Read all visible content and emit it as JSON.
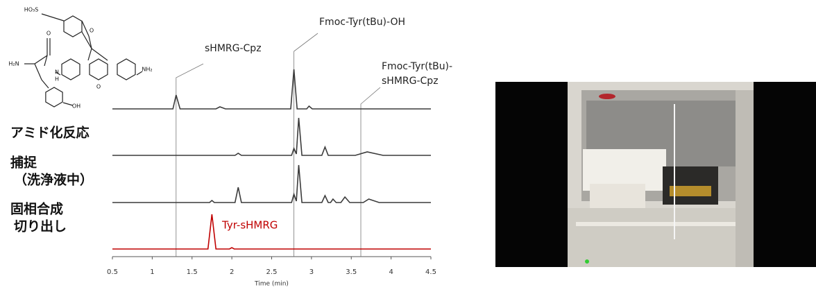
{
  "chart_data": {
    "type": "line",
    "xlabel": "Time (min)",
    "xlim": [
      0.5,
      4.5
    ],
    "xticks": [
      0.5,
      1,
      1.5,
      2,
      2.5,
      3,
      3.5,
      4,
      4.5
    ],
    "ylim": [
      0,
      70
    ],
    "series": [
      {
        "color": "#3a3a3a",
        "x": [
          0.5,
          1.26,
          1.3,
          1.35,
          1.8,
          1.85,
          1.92,
          2.74,
          2.78,
          2.82,
          2.94,
          2.97,
          3.01,
          4.5
        ],
        "values": [
          0,
          0,
          20,
          0,
          0,
          3,
          0,
          0,
          57,
          0,
          0,
          4,
          0,
          0
        ]
      },
      {
        "label": [
          "アミド化反応"
        ],
        "color": "#3a3a3a",
        "x": [
          0.5,
          2.04,
          2.08,
          2.12,
          2.75,
          2.78,
          2.81,
          2.84,
          2.88,
          3.13,
          3.17,
          3.21,
          3.55,
          3.7,
          3.9,
          4.5
        ],
        "values": [
          0,
          0,
          3,
          0,
          0,
          10,
          2,
          54,
          0,
          0,
          12,
          0,
          0,
          5,
          0,
          0
        ]
      },
      {
        "label": [
          "捕捉",
          "（洗浄液中）"
        ],
        "color": "#3a3a3a",
        "x": [
          0.5,
          1.72,
          1.75,
          1.78,
          2.04,
          2.08,
          2.12,
          2.75,
          2.78,
          2.81,
          2.84,
          2.88,
          3.13,
          3.17,
          3.21,
          3.24,
          3.27,
          3.31,
          3.37,
          3.42,
          3.48,
          3.65,
          3.72,
          3.85,
          4.5
        ],
        "values": [
          0,
          0,
          3,
          0,
          0,
          22,
          0,
          0,
          12,
          2,
          54,
          0,
          0,
          10,
          0,
          0,
          5,
          0,
          0,
          8,
          0,
          0,
          5,
          0,
          0
        ]
      },
      {
        "label": [
          "固相合成",
          "切り出し"
        ],
        "color": "#c00000",
        "x": [
          0.5,
          1.7,
          1.75,
          1.8,
          1.97,
          2.0,
          2.03,
          4.5
        ],
        "values": [
          0,
          0,
          50,
          0,
          0,
          2,
          0,
          0
        ],
        "annotation": "Tyr-sHMRG"
      }
    ],
    "annotations": [
      {
        "text": [
          "sHMRG-Cpz"
        ],
        "x": 1.3
      },
      {
        "text": [
          "Fmoc-Tyr(tBu)-OH"
        ],
        "x": 2.78
      },
      {
        "text": [
          "Fmoc-Tyr(tBu)-",
          "sHMRG-Cpz"
        ],
        "x": 3.62
      }
    ]
  },
  "structure": {
    "labels": [
      "HO₃S",
      "O",
      "O",
      "O",
      "H₂N",
      "N",
      "H",
      "NH₂",
      "OH"
    ]
  }
}
